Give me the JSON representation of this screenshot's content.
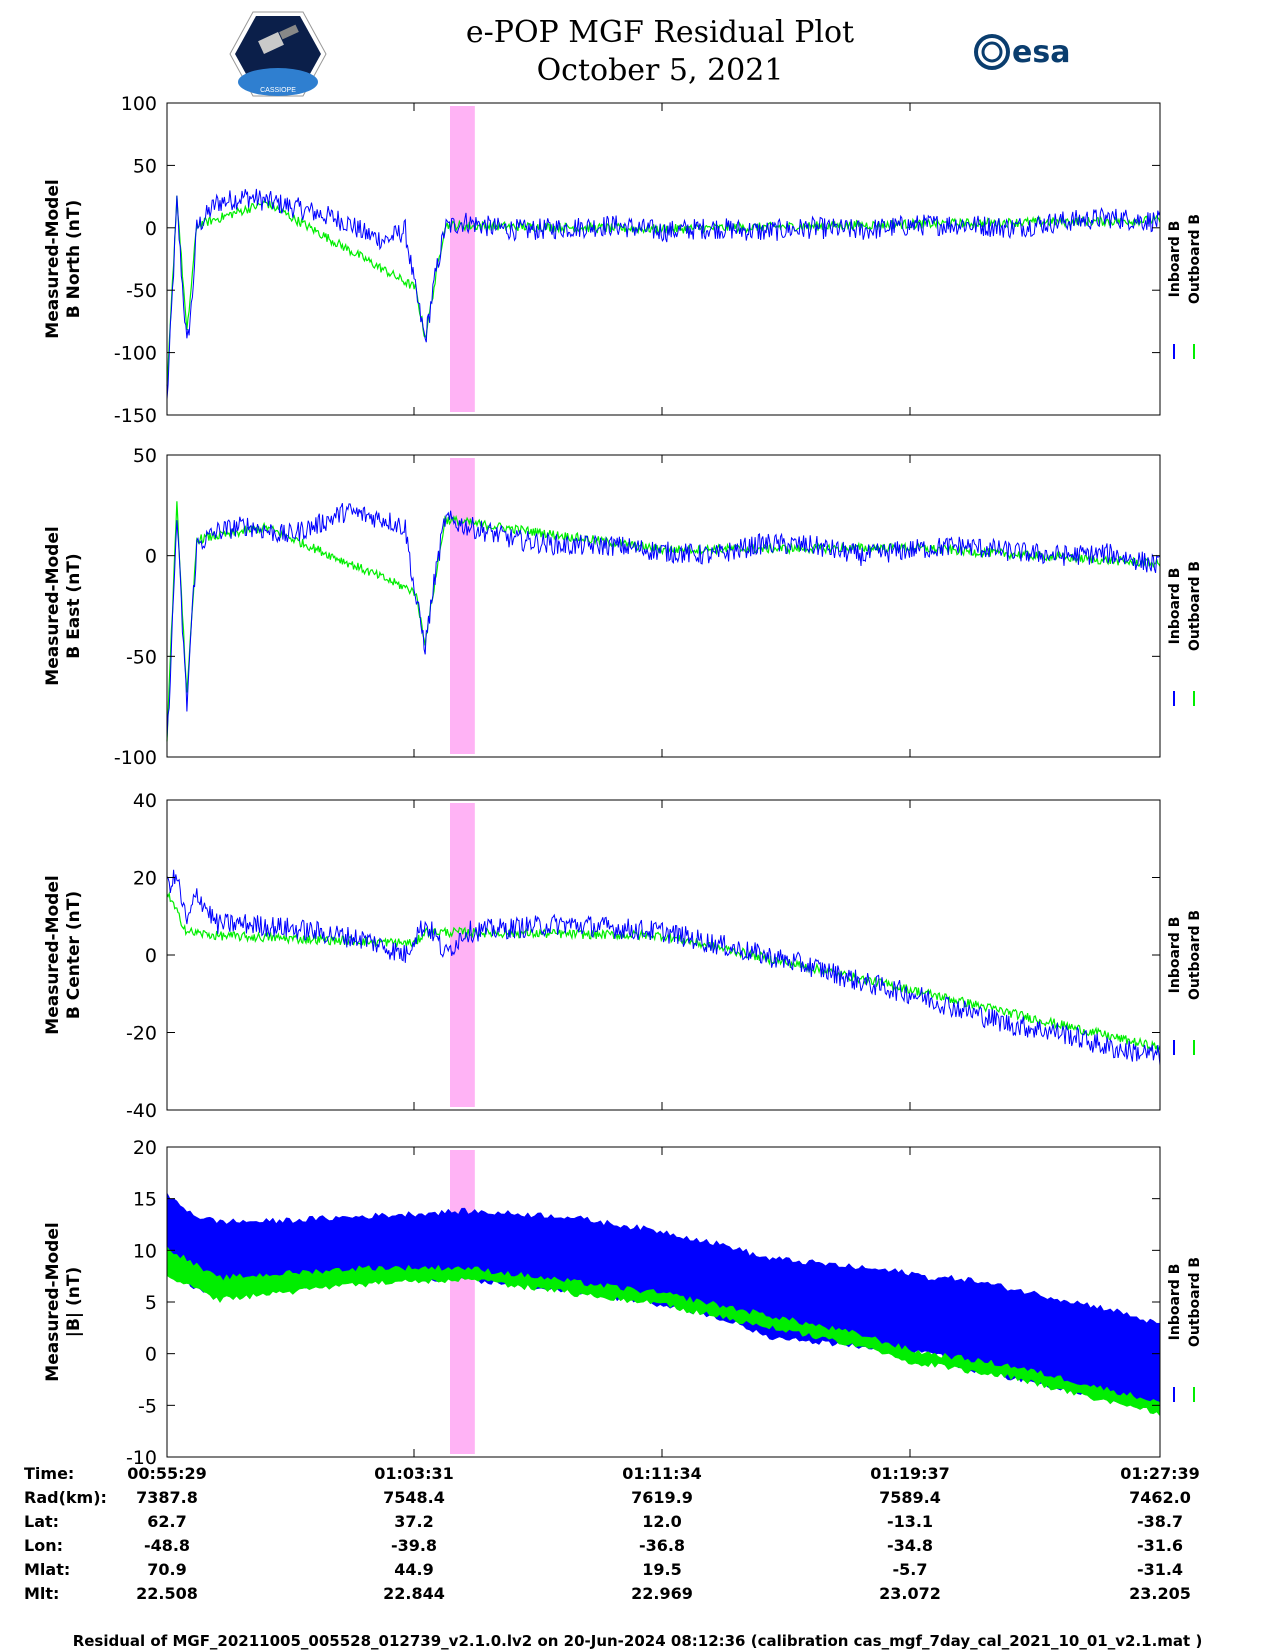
{
  "header": {
    "title_line1": "e-POP MGF Residual Plot",
    "title_line2": "October 5, 2021",
    "logo_left_text": "CASSIOPE",
    "logo_right_text": "esa"
  },
  "legend": {
    "inboard": "Inboard B",
    "outboard": "Outboard B"
  },
  "colors": {
    "inboard": "#0000ff",
    "outboard": "#00ee00",
    "highlight": "#ffb3f5"
  },
  "chart_data": [
    {
      "type": "line",
      "ylabel": [
        "Measured-Model",
        "B North (nT)"
      ],
      "ylim": [
        -150,
        100
      ],
      "yticks": [
        100,
        50,
        0,
        -50,
        -100,
        -150
      ],
      "series": [
        {
          "name": "Inboard B",
          "x": [
            0,
            0.5,
            1,
            1.5,
            2,
            2.5,
            3,
            5,
            8,
            12,
            15,
            18,
            20,
            22,
            24,
            25,
            26,
            27,
            28,
            30,
            33,
            36,
            40,
            45,
            50,
            55,
            60,
            65,
            70,
            75,
            80,
            85,
            90,
            95,
            100
          ],
          "y": [
            -140,
            -60,
            20,
            -40,
            -95,
            -60,
            0,
            20,
            25,
            18,
            12,
            5,
            -5,
            -10,
            -2,
            -50,
            -90,
            -40,
            0,
            5,
            0,
            -2,
            0,
            2,
            -3,
            0,
            -3,
            0,
            -2,
            2,
            3,
            0,
            5,
            8,
            5
          ]
        },
        {
          "name": "Outboard B",
          "x": [
            0,
            1,
            2,
            3,
            10,
            25,
            26,
            28,
            50,
            75,
            100
          ],
          "y": [
            -130,
            25,
            -85,
            2,
            20,
            -48,
            -88,
            2,
            -1,
            3,
            6
          ]
        }
      ],
      "highlight": [
        28.5,
        31
      ]
    },
    {
      "type": "line",
      "ylabel": [
        "Measured-Model",
        "B East (nT)"
      ],
      "ylim": [
        -100,
        50
      ],
      "yticks": [
        50,
        0,
        -50,
        -100
      ],
      "series": [
        {
          "name": "Inboard B",
          "x": [
            0,
            0.5,
            1,
            1.5,
            2,
            2.5,
            3,
            5,
            8,
            12,
            15,
            18,
            20,
            22,
            24,
            25,
            26,
            27,
            28,
            30,
            35,
            40,
            45,
            50,
            55,
            60,
            65,
            70,
            75,
            80,
            85,
            90,
            95,
            100
          ],
          "y": [
            -95,
            -40,
            20,
            -30,
            -75,
            -30,
            5,
            12,
            15,
            10,
            15,
            22,
            20,
            18,
            14,
            -20,
            -45,
            -10,
            18,
            15,
            8,
            5,
            5,
            2,
            0,
            6,
            5,
            0,
            3,
            5,
            2,
            0,
            1,
            -5
          ]
        },
        {
          "name": "Outboard B",
          "x": [
            0,
            1,
            2,
            3,
            10,
            25,
            26,
            28,
            50,
            75,
            100
          ],
          "y": [
            -90,
            25,
            -70,
            8,
            14,
            -18,
            -43,
            18,
            3,
            4,
            -4
          ]
        }
      ],
      "highlight": [
        28.5,
        31
      ]
    },
    {
      "type": "line",
      "ylabel": [
        "Measured-Model",
        "B Center (nT)"
      ],
      "ylim": [
        -40,
        40
      ],
      "yticks": [
        40,
        20,
        0,
        -20,
        -40
      ],
      "series": [
        {
          "name": "Inboard B",
          "x": [
            0,
            1,
            2,
            3,
            5,
            8,
            12,
            15,
            20,
            24,
            25,
            26,
            27,
            28,
            30,
            35,
            40,
            45,
            50,
            55,
            60,
            65,
            70,
            75,
            80,
            85,
            90,
            95,
            100
          ],
          "y": [
            18,
            20,
            8,
            16,
            8,
            8,
            7,
            6,
            4,
            0,
            5,
            8,
            5,
            0,
            6,
            7,
            8,
            7,
            6,
            3,
            0,
            -3,
            -7,
            -10,
            -14,
            -18,
            -20,
            -24,
            -26
          ]
        },
        {
          "name": "Outboard B",
          "x": [
            0,
            2,
            5,
            25,
            26,
            50,
            75,
            100
          ],
          "y": [
            16,
            6,
            5,
            3,
            6,
            5,
            -9,
            -24
          ]
        }
      ],
      "highlight": [
        28.5,
        31
      ]
    },
    {
      "type": "area",
      "ylabel": [
        "Measured-Model",
        "|B| (nT)"
      ],
      "ylim": [
        -10,
        20
      ],
      "yticks": [
        20,
        15,
        10,
        5,
        0,
        -5,
        -10
      ],
      "series": [
        {
          "name": "Inboard B",
          "x": [
            0,
            3,
            5,
            10,
            20,
            30,
            40,
            50,
            57,
            60,
            70,
            75,
            77,
            80,
            85,
            90,
            95,
            100
          ],
          "upper": [
            15,
            13,
            12.5,
            12.5,
            13,
            13.5,
            13,
            11.5,
            10,
            9,
            8,
            7.5,
            7,
            7,
            6,
            5,
            4,
            2.5
          ],
          "lower": [
            9,
            6.5,
            6,
            6.5,
            7.5,
            7.5,
            6.5,
            5,
            3.5,
            2,
            1,
            0.5,
            0.5,
            -1,
            -2,
            -3,
            -4,
            -5
          ]
        },
        {
          "name": "Outboard B",
          "x": [
            0,
            5,
            20,
            30,
            50,
            70,
            75,
            85,
            100
          ],
          "upper": [
            10,
            7,
            8,
            8,
            5.5,
            1.5,
            0,
            -1.5,
            -5
          ],
          "lower": [
            8,
            5.5,
            7,
            7.5,
            5,
            1,
            -0.5,
            -2,
            -5.5
          ]
        }
      ],
      "highlight": [
        28.5,
        31
      ]
    }
  ],
  "xaxis": {
    "rows": [
      {
        "label": "Time:",
        "values": [
          "00:55:29",
          "01:03:31",
          "01:11:34",
          "01:19:37",
          "01:27:39"
        ]
      },
      {
        "label": "Rad(km):",
        "values": [
          "7387.8",
          "7548.4",
          "7619.9",
          "7589.4",
          "7462.0"
        ]
      },
      {
        "label": "Lat:",
        "values": [
          "62.7",
          "37.2",
          "12.0",
          "-13.1",
          "-38.7"
        ]
      },
      {
        "label": "Lon:",
        "values": [
          "-48.8",
          "-39.8",
          "-36.8",
          "-34.8",
          "-31.6"
        ]
      },
      {
        "label": "Mlat:",
        "values": [
          "70.9",
          "44.9",
          "19.5",
          "-5.7",
          "-31.4"
        ]
      },
      {
        "label": "Mlt:",
        "values": [
          "22.508",
          "22.844",
          "22.969",
          "23.072",
          "23.205"
        ]
      }
    ]
  },
  "footer": "Residual of MGF_20211005_005528_012739_v2.1.0.lv2 on 20-Jun-2024 08:12:36 (calibration cas_mgf_7day_cal_2021_10_01_v2.1.mat )"
}
